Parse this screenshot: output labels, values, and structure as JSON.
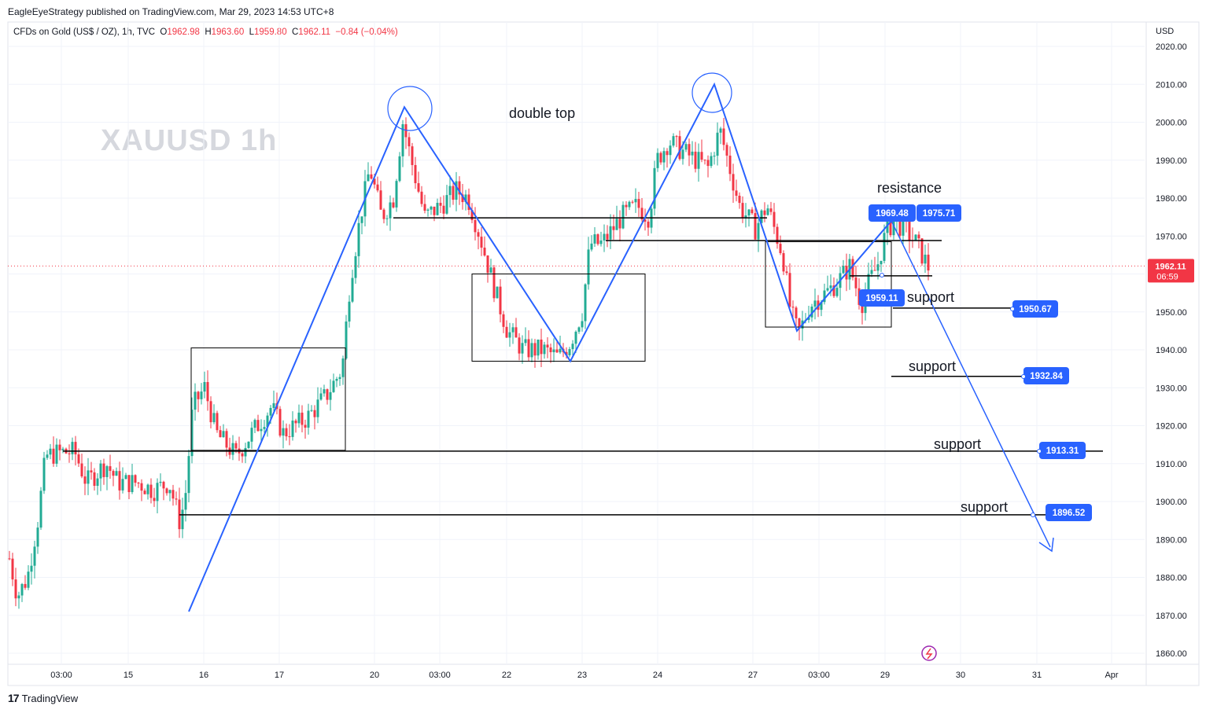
{
  "header": {
    "publisher": "EagleEyeStrategy published on TradingView.com, Mar 29, 2023 14:53 UTC+8"
  },
  "instrument": {
    "name": "CFDs on Gold (US$ / OZ), 1h, TVC",
    "open_label": "O",
    "open": "1962.98",
    "high_label": "H",
    "high": "1963.60",
    "low_label": "L",
    "low": "1959.80",
    "close_label": "C",
    "close": "1962.11",
    "change": "−0.84 (−0.04%)"
  },
  "watermark": "XAUUSD  1h",
  "currency": "USD",
  "footer": {
    "brand": "TradingView"
  },
  "colors": {
    "up": "#22ab94",
    "down": "#f23645",
    "pattern": "#2962ff",
    "level": "#000000",
    "price_tag": "#f23645",
    "callout": "#2962ff"
  },
  "chart_data": {
    "type": "candlestick",
    "ylim": [
      1855,
      2023
    ],
    "y_ticks": [
      "2020.00",
      "2010.00",
      "2000.00",
      "1990.00",
      "1980.00",
      "1970.00",
      "1960.00",
      "1950.00",
      "1940.00",
      "1930.00",
      "1920.00",
      "1910.00",
      "1900.00",
      "1890.00",
      "1880.00",
      "1870.00",
      "1860.00"
    ],
    "x_ticks": [
      "03:00",
      "15",
      "16",
      "17",
      "20",
      "03:00",
      "22",
      "23",
      "24",
      "27",
      "03:00",
      "29",
      "30",
      "31",
      "Apr"
    ],
    "last_price": {
      "value": "1962.11",
      "countdown": "06:59"
    },
    "annotations": {
      "double_top": "double top",
      "resistance": "resistance",
      "support_1": "support",
      "support_2": "support",
      "support_3": "support",
      "support_4": "support"
    },
    "callouts": [
      "1969.48",
      "1975.71",
      "1959.11",
      "1950.67",
      "1932.84",
      "1913.31",
      "1896.52"
    ],
    "levels": [
      1974.8,
      1968.8,
      1959.5,
      1951.0,
      1933.0,
      1913.3,
      1896.5
    ],
    "zigzag_1": [
      1871,
      2004,
      1937,
      2010,
      1945,
      1974
    ],
    "target": 1888
  }
}
